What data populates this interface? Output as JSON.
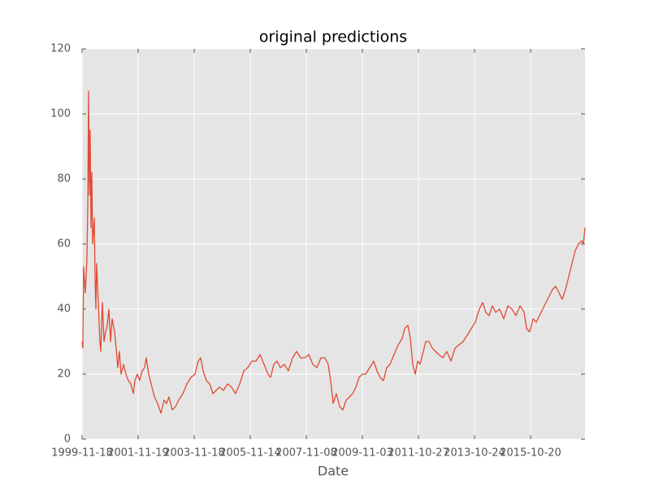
{
  "chart_data": {
    "type": "line",
    "title": "original predictions",
    "x_label": "Date",
    "x": [
      0,
      7,
      14,
      29,
      43,
      51,
      58,
      65,
      72,
      80,
      87,
      94,
      109,
      116,
      123,
      130,
      145,
      159,
      167,
      181,
      196,
      210,
      225,
      239,
      254,
      268,
      290,
      304,
      319,
      333,
      348,
      370,
      391,
      413,
      435,
      457,
      471,
      493,
      514,
      536,
      558,
      572,
      594,
      616,
      645,
      674,
      703,
      732,
      754,
      775,
      804,
      833,
      862,
      899,
      935,
      971,
      1007,
      1036,
      1058,
      1080,
      1109,
      1138,
      1167,
      1196,
      1225,
      1261,
      1297,
      1333,
      1369,
      1406,
      1442,
      1478,
      1514,
      1551,
      1587,
      1623,
      1659,
      1681,
      1710,
      1739,
      1768,
      1804,
      1840,
      1877,
      1913,
      1949,
      1985,
      2022,
      2058,
      2094,
      2130,
      2167,
      2195,
      2217,
      2239,
      2268,
      2297,
      2326,
      2355,
      2384,
      2413,
      2442,
      2471,
      2500,
      2529,
      2565,
      2601,
      2630,
      2659,
      2688,
      2717,
      2746,
      2782,
      2819,
      2855,
      2877,
      2906,
      2927,
      2949,
      2971,
      2993,
      3014,
      3036,
      3065,
      3094,
      3123,
      3152,
      3181,
      3217,
      3253,
      3290,
      3326,
      3362,
      3398,
      3435,
      3471,
      3507,
      3543,
      3572,
      3601,
      3630,
      3659,
      3688,
      3724,
      3761,
      3797,
      3833,
      3869,
      3906,
      3942,
      3964,
      3992,
      4022,
      4051,
      4079,
      4108,
      4137,
      4166,
      4195,
      4224,
      4253,
      4282,
      4311,
      4340,
      4369,
      4398,
      4427,
      4456,
      4471,
      4485
    ],
    "values": [
      30,
      28,
      53,
      45,
      55,
      72,
      107,
      75,
      95,
      65,
      82,
      60,
      68,
      50,
      40,
      54,
      42,
      30,
      27,
      42,
      30,
      33,
      35,
      40,
      30,
      37,
      33,
      28,
      22,
      27,
      20,
      23,
      20,
      18,
      17,
      14,
      18,
      20,
      18,
      21,
      22,
      25,
      20,
      17,
      13,
      11,
      8,
      12,
      11,
      13,
      9,
      10,
      12,
      14,
      17,
      19,
      20,
      24,
      25,
      21,
      18,
      17,
      14,
      15,
      16,
      15,
      17,
      16,
      14,
      17,
      21,
      22,
      24,
      24,
      26,
      23,
      20,
      19,
      23,
      24,
      22,
      23,
      21,
      25,
      27,
      25,
      25,
      26,
      23,
      22,
      25,
      25,
      23,
      18,
      11,
      14,
      10,
      9,
      12,
      13,
      14,
      16,
      19,
      20,
      20,
      22,
      24,
      21,
      19,
      18,
      22,
      23,
      26,
      29,
      31,
      34,
      35,
      31,
      23,
      20,
      24,
      23,
      26,
      30,
      30,
      28,
      27,
      26,
      25,
      27,
      24,
      28,
      29,
      30,
      32,
      34,
      36,
      40,
      42,
      39,
      38,
      41,
      39,
      40,
      37,
      41,
      40,
      38,
      41,
      39,
      34,
      33,
      37,
      36,
      38,
      40,
      42,
      44,
      46,
      47,
      45,
      43,
      46,
      50,
      54,
      58,
      60,
      61,
      60,
      65
    ],
    "color": "#e24a33",
    "xlim": [
      0,
      4485
    ],
    "xticks": [
      {
        "value": 0,
        "label": "1999-11-18"
      },
      {
        "value": 500,
        "label": "2001-11-19"
      },
      {
        "value": 1000,
        "label": "2003-11-18"
      },
      {
        "value": 1500,
        "label": "2005-11-14"
      },
      {
        "value": 2000,
        "label": "2007-11-08"
      },
      {
        "value": 2500,
        "label": "2009-11-03"
      },
      {
        "value": 3000,
        "label": "2011-10-27"
      },
      {
        "value": 3500,
        "label": "2013-10-24"
      },
      {
        "value": 4000,
        "label": "2015-10-20"
      }
    ],
    "ylim": [
      0,
      120
    ],
    "yticks": [
      0,
      20,
      40,
      60,
      80,
      100,
      120
    ],
    "grid": true
  }
}
